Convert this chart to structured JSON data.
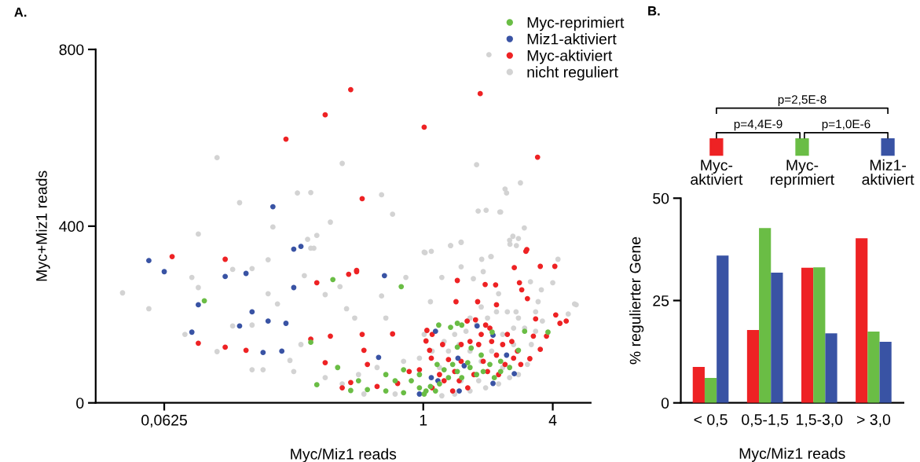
{
  "chart_data": [
    {
      "type": "scatter",
      "title": "A.",
      "xlabel": "Myc/Miz1 reads",
      "ylabel": "Myc+Miz1 reads",
      "log": "x",
      "xlim": [
        0.03,
        6
      ],
      "xticks": [
        {
          "value": 0.0625,
          "label": "0,0625"
        },
        1,
        4
      ],
      "ylim": [
        0,
        800
      ],
      "yticks": [
        0,
        400,
        800
      ],
      "marker": "circle",
      "legend": "top right",
      "series": [
        {
          "name": "Myc-reprimiert",
          "color": "#6abd45",
          "x": [
            0.38,
            0.096,
            0.3,
            0.79,
            2.96,
            3.8,
            0.32,
            0.4,
            1.18,
            1.34,
            1.44,
            1.51,
            1.44,
            1.67,
            2.09,
            2.77,
            0.67,
            0.81,
            0.88,
            0.96,
            1.03,
            1.08,
            1.01,
            0.81,
            0.67,
            0.55,
            0.46,
            1.14,
            1.19,
            1.25,
            1.31,
            1.44,
            1.51,
            1.65,
            1.77,
            1.9,
            2.04,
            2.14,
            2.29,
            1.86,
            1.61,
            1.37,
            1.16,
            0.96,
            0.74,
            0.5,
            2.29,
            2.52
          ],
          "values": [
            279,
            231,
            137,
            263,
            162,
            160,
            41,
            80,
            176,
            171,
            180,
            176,
            126,
            124,
            160,
            119,
            64,
            75,
            50,
            34,
            27,
            37,
            20,
            23,
            27,
            30,
            28,
            27,
            43,
            75,
            57,
            71,
            57,
            80,
            64,
            71,
            87,
            57,
            71,
            108,
            91,
            87,
            87,
            64,
            50,
            50,
            94,
            80
          ]
        },
        {
          "name": "Miz1-aktiviert",
          "color": "#3953a4",
          "x": [
            0.053,
            0.0625,
            0.25,
            0.27,
            0.66,
            0.12,
            0.15,
            0.25,
            0.09,
            0.16,
            0.19,
            0.23,
            0.14,
            0.084,
            0.18,
            0.22,
            0.62,
            1.14,
            1.78,
            2.11,
            2.44,
            2.65,
            1.09,
            1.17,
            2.11,
            1.45,
            1.55,
            1.47,
            0.96,
            0.2
          ],
          "values": [
            322,
            297,
            348,
            354,
            288,
            286,
            293,
            261,
            222,
            206,
            185,
            180,
            174,
            160,
            114,
            117,
            103,
            162,
            174,
            153,
            108,
            66,
            57,
            50,
            44,
            101,
            84,
            27,
            20,
            444
          ]
        },
        {
          "name": "Myc-aktiviert",
          "color": "#ee2224",
          "x": [
            1.01,
            0.46,
            0.35,
            0.23,
            1.84,
            3.4,
            0.52,
            0.068,
            0.49,
            3.0,
            3.5,
            0.12,
            0.09,
            0.12,
            0.15,
            0.32,
            0.45,
            0.49,
            0.3,
            0.37,
            0.52,
            0.72,
            0.53,
            0.35,
            0.55,
            1.44,
            1.42,
            1.79,
            1.94,
            2.17,
            2.19,
            2.65,
            2.8,
            2.87,
            3.05,
            3.03,
            4.09,
            4.13,
            4.32,
            4.62,
            3.33,
            3.74,
            3.5,
            3.13,
            3.25,
            1.04,
            1.1,
            1.03,
            1.07,
            1.09,
            0.96,
            0.86,
            0.76,
            0.61,
            0.42,
            0.46,
            1.23,
            1.31,
            1.4,
            1.5,
            1.6,
            1.65,
            1.75,
            1.86,
            1.95,
            2.04,
            2.08,
            1.9,
            1.99,
            2.19,
            2.34,
            2.46,
            2.58,
            2.63,
            2.4,
            2.84,
            2.74,
            1.25,
            1.47,
            1.72,
            1.37,
            1.1,
            1.19,
            1.61,
            2.24,
            1.81,
            1.5
          ],
          "values": [
            624,
            709,
            652,
            597,
            700,
            556,
            462,
            331,
            297,
            343,
            309,
            325,
            135,
            126,
            119,
            272,
            291,
            300,
            144,
            151,
            155,
            156,
            119,
            91,
            87,
            277,
            229,
            229,
            268,
            267,
            222,
            306,
            272,
            256,
            236,
            347,
            309,
            199,
            180,
            185,
            190,
            151,
            121,
            100,
            151,
            164,
            155,
            140,
            119,
            101,
            75,
            71,
            44,
            37,
            34,
            46,
            132,
            98,
            71,
            94,
            185,
            139,
            188,
            155,
            176,
            169,
            139,
            94,
            71,
            108,
            132,
            155,
            139,
            101,
            87,
            87,
            117,
            50,
            50,
            64,
            27,
            34,
            64,
            34,
            64,
            132,
            132
          ]
        },
        {
          "name": "nicht reguliert",
          "color": "#d3d3d3",
          "x": [
            2.02,
            0.11,
            0.42,
            0.26,
            0.3,
            0.64,
            0.14,
            0.09,
            0.2,
            0.37,
            0.32,
            0.31,
            0.29,
            1.77,
            0.72,
            2.83,
            2.44,
            1.8,
            1.96,
            2.29,
            2.95,
            2.61,
            2.53,
            2.71,
            1.34,
            1.5,
            1.02,
            1.09,
            1.87,
            2.07,
            2.4,
            2.27,
            2.77,
            5.05,
            4.23,
            4.0,
            4.72,
            0.04,
            0.053,
            0.084,
            0.09,
            0.13,
            0.16,
            0.078,
            0.11,
            0.13,
            0.16,
            0.19,
            0.19,
            0.21,
            0.16,
            0.18,
            0.24,
            0.25,
            0.27,
            0.3,
            0.28,
            0.35,
            0.41,
            0.44,
            0.48,
            0.64,
            0.67,
            0.83,
            1.01,
            1.08,
            1.01,
            1.22,
            1.34,
            1.5,
            1.5,
            1.71,
            1.9,
            2.06,
            2.24,
            2.52,
            3.15,
            3.33,
            5.14,
            3.54,
            2.7,
            1.86,
            1.65,
            0.35,
            0.42,
            0.5,
            0.61,
            0.81,
            0.96,
            1.1,
            1.25,
            1.4,
            1.58,
            1.77,
            1.99,
            2.19,
            2.46,
            2.77,
            2.96,
            3.18,
            3.05,
            2.77,
            2.52,
            2.24,
            1.95,
            1.65,
            1.4,
            1.22,
            0.74,
            0.53,
            1.31,
            1.47,
            1.65,
            1.86,
            2.08,
            2.34,
            2.63,
            2.63,
            1.19,
            1.5,
            1.81,
            2.34,
            3.33,
            3.58,
            3.42
          ],
          "values": [
            788,
            555,
            542,
            475,
            476,
            471,
            453,
            382,
            398,
            409,
            379,
            350,
            370,
            539,
            427,
            498,
            475,
            434,
            436,
            432,
            396,
            377,
            359,
            356,
            356,
            363,
            340,
            343,
            325,
            331,
            484,
            432,
            372,
            224,
            325,
            272,
            201,
            249,
            213,
            284,
            261,
            302,
            304,
            155,
            116,
            174,
            176,
            324,
            247,
            224,
            75,
            75,
            96,
            71,
            132,
            350,
            288,
            245,
            263,
            213,
            192,
            242,
            192,
            284,
            341,
            229,
            155,
            284,
            356,
            364,
            308,
            281,
            297,
            331,
            247,
            368,
            274,
            206,
            222,
            256,
            206,
            217,
            192,
            57,
            43,
            64,
            80,
            94,
            101,
            117,
            139,
            155,
            162,
            176,
            192,
            206,
            206,
            192,
            169,
            132,
            87,
            64,
            57,
            43,
            34,
            27,
            20,
            16,
            20,
            20,
            117,
            132,
            117,
            94,
            117,
            155,
            169,
            132,
            80,
            50,
            50,
            80,
            162,
            185,
            229
          ]
        }
      ]
    },
    {
      "type": "bar",
      "title": "B.",
      "xlabel": "Myc/Miz1 reads",
      "ylabel": "% regulierter Gene",
      "categories": [
        "< 0,5",
        "0,5-1,5",
        "1,5-3,0",
        "> 3,0"
      ],
      "ylim": [
        0,
        50
      ],
      "yticks": [
        0,
        25,
        50
      ],
      "legend": "top",
      "annotations": [
        "p=2,5E-8",
        "p=4,4E-9",
        "p=1,0E-6"
      ],
      "series": [
        {
          "name": "Myc-aktiviert",
          "color": "#ee2224",
          "values": [
            8.8,
            17.8,
            33.0,
            40.2
          ]
        },
        {
          "name": "Myc-reprimiert",
          "color": "#6abd45",
          "values": [
            6.1,
            42.7,
            33.1,
            17.4
          ]
        },
        {
          "name": "Miz1-aktiviert",
          "color": "#3953a4",
          "values": [
            36.0,
            31.8,
            17.0,
            14.9
          ]
        }
      ]
    }
  ]
}
